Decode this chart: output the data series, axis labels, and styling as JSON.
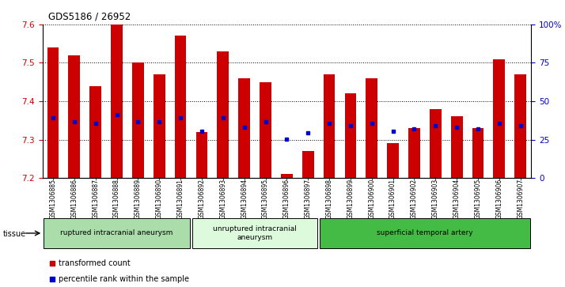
{
  "title": "GDS5186 / 26952",
  "samples": [
    "GSM1306885",
    "GSM1306886",
    "GSM1306887",
    "GSM1306888",
    "GSM1306889",
    "GSM1306890",
    "GSM1306891",
    "GSM1306892",
    "GSM1306893",
    "GSM1306894",
    "GSM1306895",
    "GSM1306896",
    "GSM1306897",
    "GSM1306898",
    "GSM1306899",
    "GSM1306900",
    "GSM1306901",
    "GSM1306902",
    "GSM1306903",
    "GSM1306904",
    "GSM1306905",
    "GSM1306906",
    "GSM1306907"
  ],
  "bar_values": [
    7.54,
    7.52,
    7.44,
    7.6,
    7.5,
    7.47,
    7.57,
    7.32,
    7.53,
    7.46,
    7.45,
    7.21,
    7.27,
    7.47,
    7.42,
    7.46,
    7.29,
    7.33,
    7.38,
    7.36,
    7.33,
    7.51,
    7.47
  ],
  "percentile_values": [
    7.357,
    7.347,
    7.342,
    7.365,
    7.347,
    7.347,
    7.357,
    7.322,
    7.357,
    7.332,
    7.347,
    7.302,
    7.317,
    7.342,
    7.337,
    7.342,
    7.322,
    7.327,
    7.337,
    7.332,
    7.327,
    7.342,
    7.337
  ],
  "y_min": 7.2,
  "y_max": 7.6,
  "y_ticks": [
    7.2,
    7.3,
    7.4,
    7.5,
    7.6
  ],
  "y2_ticks": [
    0,
    25,
    50,
    75,
    100
  ],
  "bar_color": "#cc0000",
  "dot_color": "#0000cc",
  "tick_label_color_left": "#cc0000",
  "tick_label_color_right": "#0000cc",
  "groups": [
    {
      "label": "ruptured intracranial aneurysm",
      "start": 0,
      "end": 7,
      "color": "#aaddaa"
    },
    {
      "label": "unruptured intracranial\naneurysm",
      "start": 7,
      "end": 13,
      "color": "#ddfadd"
    },
    {
      "label": "superficial temporal artery",
      "start": 13,
      "end": 23,
      "color": "#44bb44"
    }
  ],
  "legend_items": [
    {
      "label": "transformed count",
      "color": "#cc0000"
    },
    {
      "label": "percentile rank within the sample",
      "color": "#0000cc"
    }
  ],
  "tissue_label": "tissue"
}
